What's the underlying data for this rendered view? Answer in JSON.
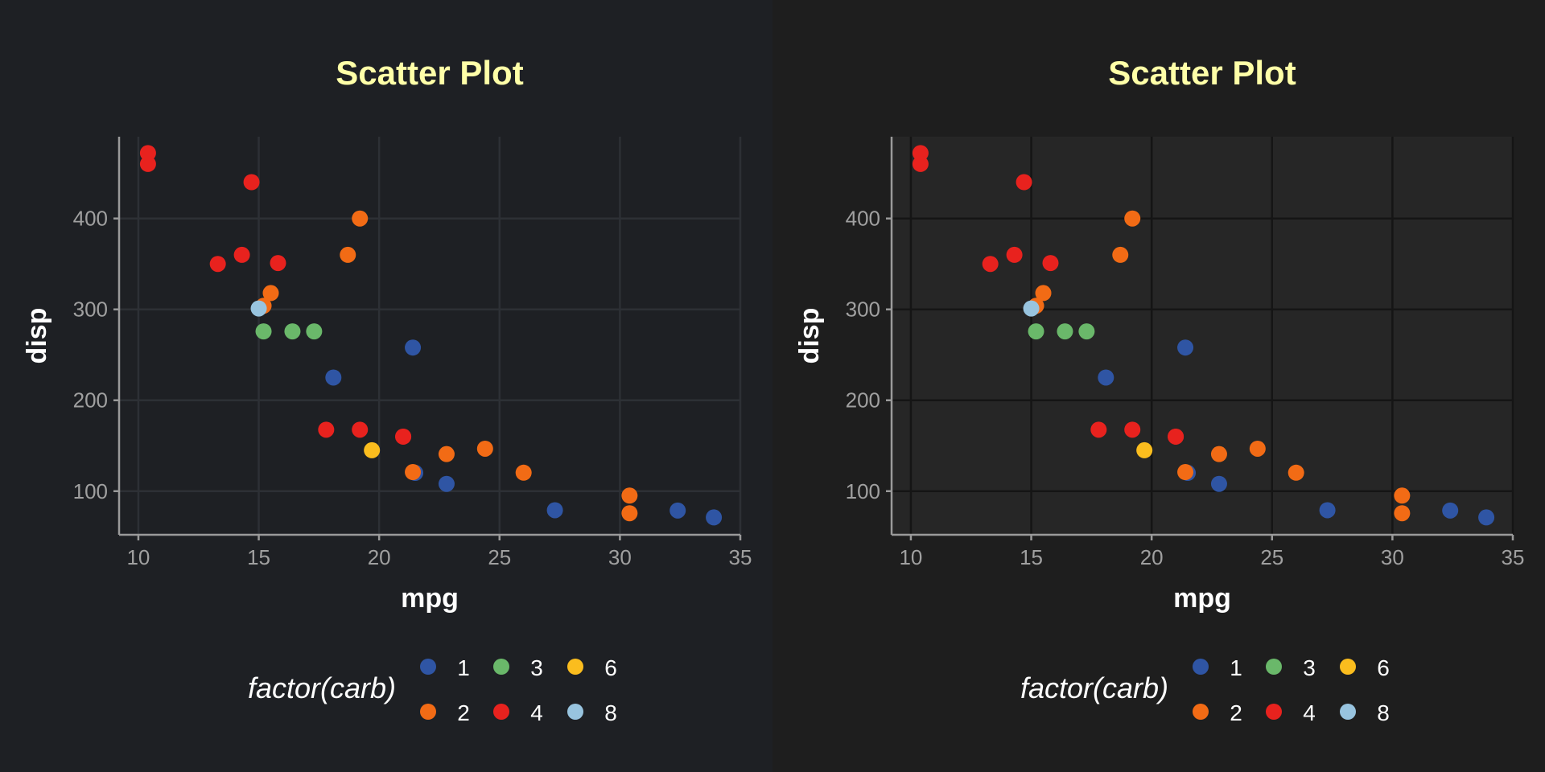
{
  "panels": [
    {
      "background": "#1e2024",
      "plot_background": "#1e2024",
      "grid_color": "#2d3035",
      "axis_color": "#9a9a9a"
    },
    {
      "background": "#1e1e1e",
      "plot_background": "#262626",
      "grid_color": "#151515",
      "axis_color": "#9a9a9a"
    }
  ],
  "chart_data": [
    {
      "type": "scatter",
      "title": "Scatter Plot",
      "xlabel": "mpg",
      "ylabel": "disp",
      "xlim": [
        9.2,
        35
      ],
      "ylim": [
        52,
        490
      ],
      "xticks": [
        10,
        15,
        20,
        25,
        30,
        35
      ],
      "yticks": [
        100,
        200,
        300,
        400
      ],
      "grid": true,
      "title_color": "#ffffa8",
      "legend": {
        "title": "factor(carb)",
        "position": "bottom",
        "entries": [
          {
            "label": "1",
            "color": "#2f55a4"
          },
          {
            "label": "3",
            "color": "#6ab86a"
          },
          {
            "label": "6",
            "color": "#fbbd1e"
          },
          {
            "label": "2",
            "color": "#f26b15"
          },
          {
            "label": "4",
            "color": "#e8221e"
          },
          {
            "label": "8",
            "color": "#98c4df"
          }
        ]
      },
      "series": [
        {
          "name": "1",
          "color": "#2f55a4",
          "x": [
            21.4,
            18.1,
            22.8,
            32.4,
            33.9,
            21.5,
            27.3
          ],
          "y": [
            258,
            225,
            108,
            78.7,
            71.1,
            120.1,
            79
          ]
        },
        {
          "name": "2",
          "color": "#f26b15",
          "x": [
            18.7,
            24.4,
            22.8,
            30.4,
            15.5,
            15.2,
            19.2,
            26,
            30.4,
            21.4
          ],
          "y": [
            360,
            146.7,
            140.8,
            75.7,
            318,
            304,
            400,
            120.3,
            95.1,
            121
          ]
        },
        {
          "name": "3",
          "color": "#6ab86a",
          "x": [
            16.4,
            17.3,
            15.2
          ],
          "y": [
            275.8,
            275.8,
            275.8
          ]
        },
        {
          "name": "4",
          "color": "#e8221e",
          "x": [
            21,
            21,
            14.3,
            19.2,
            17.8,
            10.4,
            10.4,
            14.7,
            13.3,
            15.8
          ],
          "y": [
            160,
            160,
            360,
            167.6,
            167.6,
            472,
            460,
            440,
            350,
            351
          ]
        },
        {
          "name": "6",
          "color": "#fbbd1e",
          "x": [
            19.7
          ],
          "y": [
            145
          ]
        },
        {
          "name": "8",
          "color": "#98c4df",
          "x": [
            15
          ],
          "y": [
            301
          ]
        }
      ]
    },
    {
      "type": "scatter",
      "title": "Scatter Plot",
      "xlabel": "mpg",
      "ylabel": "disp",
      "xlim": [
        9.2,
        35
      ],
      "ylim": [
        52,
        490
      ],
      "xticks": [
        10,
        15,
        20,
        25,
        30,
        35
      ],
      "yticks": [
        100,
        200,
        300,
        400
      ],
      "grid": true,
      "title_color": "#ffffa8",
      "legend": {
        "title": "factor(carb)",
        "position": "bottom",
        "entries": [
          {
            "label": "1",
            "color": "#2f55a4"
          },
          {
            "label": "3",
            "color": "#6ab86a"
          },
          {
            "label": "6",
            "color": "#fbbd1e"
          },
          {
            "label": "2",
            "color": "#f26b15"
          },
          {
            "label": "4",
            "color": "#e8221e"
          },
          {
            "label": "8",
            "color": "#98c4df"
          }
        ]
      },
      "series": [
        {
          "name": "1",
          "color": "#2f55a4",
          "x": [
            21.4,
            18.1,
            22.8,
            32.4,
            33.9,
            21.5,
            27.3
          ],
          "y": [
            258,
            225,
            108,
            78.7,
            71.1,
            120.1,
            79
          ]
        },
        {
          "name": "2",
          "color": "#f26b15",
          "x": [
            18.7,
            24.4,
            22.8,
            30.4,
            15.5,
            15.2,
            19.2,
            26,
            30.4,
            21.4
          ],
          "y": [
            360,
            146.7,
            140.8,
            75.7,
            318,
            304,
            400,
            120.3,
            95.1,
            121
          ]
        },
        {
          "name": "3",
          "color": "#6ab86a",
          "x": [
            16.4,
            17.3,
            15.2
          ],
          "y": [
            275.8,
            275.8,
            275.8
          ]
        },
        {
          "name": "4",
          "color": "#e8221e",
          "x": [
            21,
            21,
            14.3,
            19.2,
            17.8,
            10.4,
            10.4,
            14.7,
            13.3,
            15.8
          ],
          "y": [
            160,
            160,
            360,
            167.6,
            167.6,
            472,
            460,
            440,
            350,
            351
          ]
        },
        {
          "name": "6",
          "color": "#fbbd1e",
          "x": [
            19.7
          ],
          "y": [
            145
          ]
        },
        {
          "name": "8",
          "color": "#98c4df",
          "x": [
            15
          ],
          "y": [
            301
          ]
        }
      ]
    }
  ]
}
